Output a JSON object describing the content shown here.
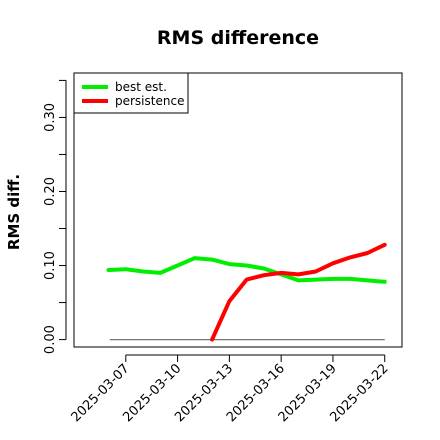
{
  "chart_data": {
    "type": "line",
    "title": "RMS difference",
    "xlabel": "",
    "ylabel": "RMS diff.",
    "x_tick_labels": [
      "2025-03-07",
      "2025-03-10",
      "2025-03-13",
      "2025-03-16",
      "2025-03-19",
      "2025-03-22"
    ],
    "y_ticks": [
      0.0,
      0.05,
      0.1,
      0.15,
      0.2,
      0.25,
      0.3,
      0.35
    ],
    "y_tick_labels": [
      "0.00",
      "0.10",
      "0.20",
      "0.30"
    ],
    "xlim": [
      "2025-03-04",
      "2025-03-23"
    ],
    "ylim": [
      -0.01,
      0.36
    ],
    "grid": false,
    "legend_position": "top-left",
    "baseline": 0.0,
    "series": [
      {
        "name": "best est.",
        "color": "#00ee00",
        "x": [
          "2025-03-06",
          "2025-03-07",
          "2025-03-08",
          "2025-03-09",
          "2025-03-10",
          "2025-03-11",
          "2025-03-12",
          "2025-03-13",
          "2025-03-14",
          "2025-03-15",
          "2025-03-16",
          "2025-03-17",
          "2025-03-18",
          "2025-03-19",
          "2025-03-20",
          "2025-03-21",
          "2025-03-22"
        ],
        "values": [
          0.094,
          0.095,
          0.092,
          0.09,
          0.1,
          0.11,
          0.108,
          0.102,
          0.1,
          0.096,
          0.088,
          0.08,
          0.081,
          0.082,
          0.082,
          0.08,
          0.078
        ]
      },
      {
        "name": "persistence",
        "color": "#ff0000",
        "x": [
          "2025-03-12",
          "2025-03-13",
          "2025-03-14",
          "2025-03-15",
          "2025-03-16",
          "2025-03-17",
          "2025-03-18",
          "2025-03-19",
          "2025-03-20",
          "2025-03-21",
          "2025-03-22"
        ],
        "values": [
          0.0,
          0.052,
          0.081,
          0.087,
          0.09,
          0.088,
          0.092,
          0.103,
          0.111,
          0.117,
          0.128
        ]
      }
    ]
  }
}
